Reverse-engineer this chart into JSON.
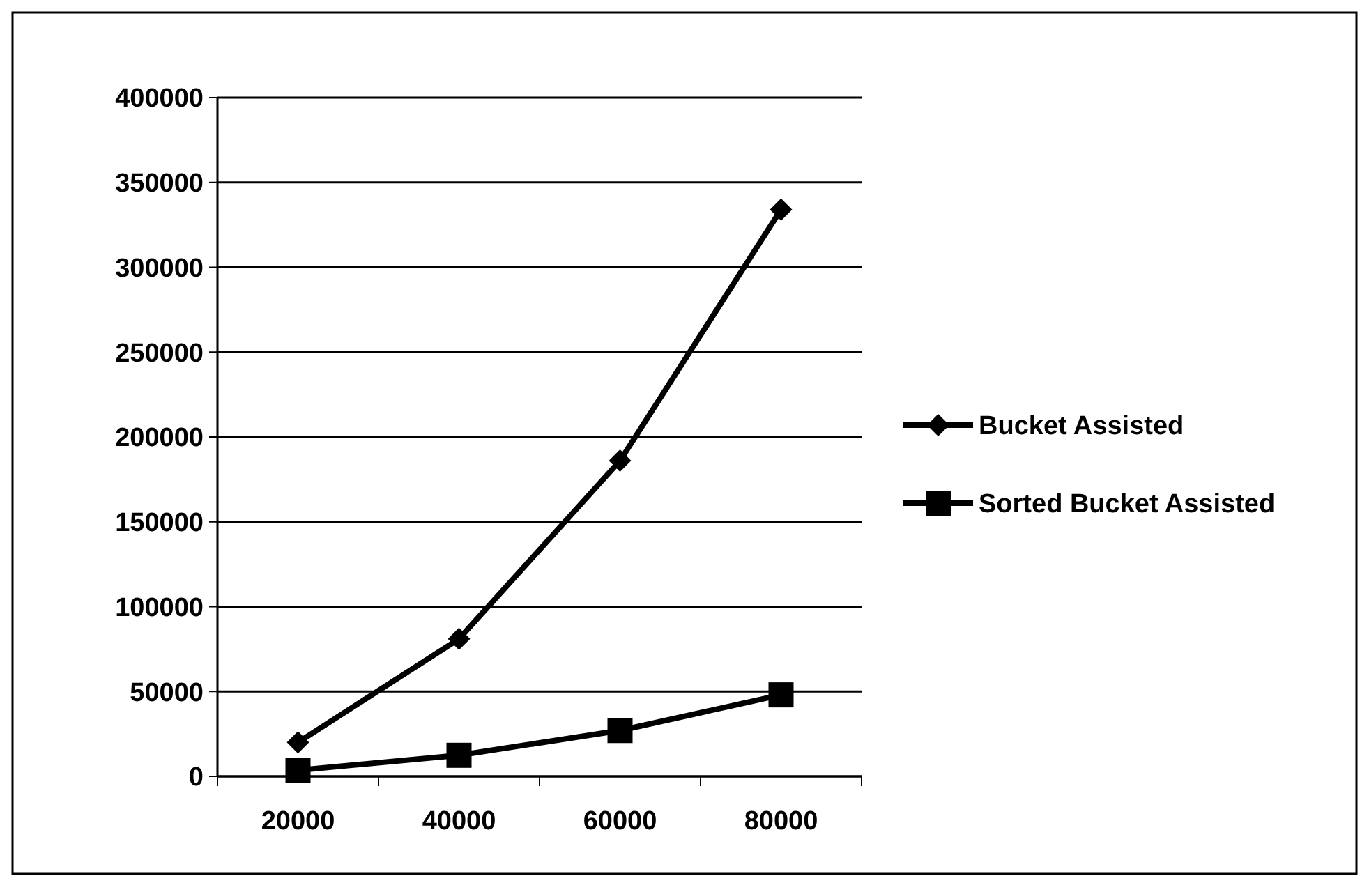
{
  "chart_data": {
    "type": "line",
    "categories": [
      "20000",
      "40000",
      "60000",
      "80000"
    ],
    "series": [
      {
        "name": "Bucket Assisted",
        "color": "#000000",
        "values": [
          20000,
          81000,
          186000,
          334000
        ],
        "marker": "diamond"
      },
      {
        "name": "Sorted Bucket Assisted",
        "color": "#000000",
        "values": [
          3600,
          12400,
          27000,
          48000
        ],
        "marker": "square"
      }
    ],
    "ylim": [
      0,
      400000
    ],
    "yticks": [
      0,
      50000,
      100000,
      150000,
      200000,
      250000,
      300000,
      350000,
      400000
    ],
    "grid": "y",
    "legend": "right"
  }
}
